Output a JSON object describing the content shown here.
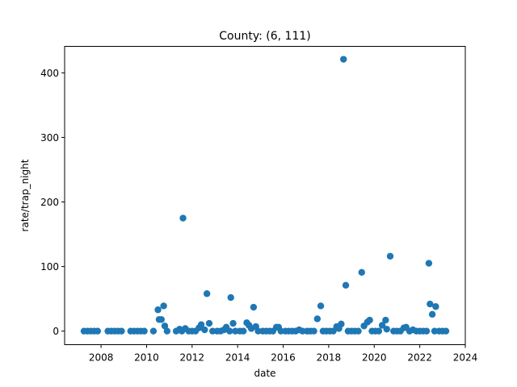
{
  "chart_data": {
    "type": "scatter",
    "title": "County: (6, 111)",
    "xlabel": "date",
    "ylabel": "rate/trap_night",
    "xlim": [
      2006.4,
      2024.0
    ],
    "ylim": [
      -21,
      441
    ],
    "xticks": [
      2008,
      2010,
      2012,
      2014,
      2016,
      2018,
      2020,
      2022,
      2024
    ],
    "yticks": [
      0,
      100,
      200,
      300,
      400
    ],
    "grid": false,
    "legend": "none",
    "marker_color": "#1f77b4",
    "points": [
      {
        "x": 2007.25,
        "y": 0
      },
      {
        "x": 2007.4,
        "y": 0
      },
      {
        "x": 2007.55,
        "y": 0
      },
      {
        "x": 2007.7,
        "y": 0
      },
      {
        "x": 2007.85,
        "y": 0
      },
      {
        "x": 2008.3,
        "y": 0
      },
      {
        "x": 2008.45,
        "y": 0
      },
      {
        "x": 2008.6,
        "y": 0
      },
      {
        "x": 2008.75,
        "y": 0
      },
      {
        "x": 2008.9,
        "y": 0
      },
      {
        "x": 2009.3,
        "y": 0
      },
      {
        "x": 2009.45,
        "y": 0
      },
      {
        "x": 2009.6,
        "y": 0
      },
      {
        "x": 2009.75,
        "y": 0
      },
      {
        "x": 2009.9,
        "y": 0
      },
      {
        "x": 2010.3,
        "y": 0
      },
      {
        "x": 2010.5,
        "y": 33
      },
      {
        "x": 2010.55,
        "y": 18
      },
      {
        "x": 2010.65,
        "y": 18
      },
      {
        "x": 2010.75,
        "y": 39
      },
      {
        "x": 2010.8,
        "y": 8
      },
      {
        "x": 2010.9,
        "y": 0
      },
      {
        "x": 2011.3,
        "y": 0
      },
      {
        "x": 2011.45,
        "y": 3
      },
      {
        "x": 2011.55,
        "y": 0
      },
      {
        "x": 2011.6,
        "y": 175
      },
      {
        "x": 2011.7,
        "y": 4
      },
      {
        "x": 2011.85,
        "y": 0
      },
      {
        "x": 2012.0,
        "y": 0
      },
      {
        "x": 2012.15,
        "y": 0
      },
      {
        "x": 2012.3,
        "y": 5
      },
      {
        "x": 2012.4,
        "y": 10
      },
      {
        "x": 2012.55,
        "y": 2
      },
      {
        "x": 2012.65,
        "y": 58
      },
      {
        "x": 2012.75,
        "y": 12
      },
      {
        "x": 2012.9,
        "y": 0
      },
      {
        "x": 2013.1,
        "y": 0
      },
      {
        "x": 2013.25,
        "y": 0
      },
      {
        "x": 2013.4,
        "y": 2
      },
      {
        "x": 2013.5,
        "y": 6
      },
      {
        "x": 2013.65,
        "y": 0
      },
      {
        "x": 2013.7,
        "y": 52
      },
      {
        "x": 2013.8,
        "y": 12
      },
      {
        "x": 2013.9,
        "y": 0
      },
      {
        "x": 2014.1,
        "y": 0
      },
      {
        "x": 2014.25,
        "y": 0
      },
      {
        "x": 2014.4,
        "y": 13
      },
      {
        "x": 2014.5,
        "y": 9
      },
      {
        "x": 2014.6,
        "y": 4
      },
      {
        "x": 2014.7,
        "y": 37
      },
      {
        "x": 2014.8,
        "y": 7
      },
      {
        "x": 2014.9,
        "y": 0
      },
      {
        "x": 2015.1,
        "y": 0
      },
      {
        "x": 2015.25,
        "y": 0
      },
      {
        "x": 2015.4,
        "y": 0
      },
      {
        "x": 2015.55,
        "y": 0
      },
      {
        "x": 2015.7,
        "y": 6
      },
      {
        "x": 2015.8,
        "y": 6
      },
      {
        "x": 2015.9,
        "y": 0
      },
      {
        "x": 2016.1,
        "y": 0
      },
      {
        "x": 2016.25,
        "y": 0
      },
      {
        "x": 2016.4,
        "y": 0
      },
      {
        "x": 2016.55,
        "y": 0
      },
      {
        "x": 2016.7,
        "y": 2
      },
      {
        "x": 2016.85,
        "y": 0
      },
      {
        "x": 2017.05,
        "y": 0
      },
      {
        "x": 2017.2,
        "y": 0
      },
      {
        "x": 2017.35,
        "y": 0
      },
      {
        "x": 2017.5,
        "y": 19
      },
      {
        "x": 2017.65,
        "y": 39
      },
      {
        "x": 2017.75,
        "y": 0
      },
      {
        "x": 2017.9,
        "y": 0
      },
      {
        "x": 2018.05,
        "y": 0
      },
      {
        "x": 2018.2,
        "y": 0
      },
      {
        "x": 2018.35,
        "y": 7
      },
      {
        "x": 2018.45,
        "y": 4
      },
      {
        "x": 2018.55,
        "y": 11
      },
      {
        "x": 2018.65,
        "y": 421
      },
      {
        "x": 2018.75,
        "y": 71
      },
      {
        "x": 2018.85,
        "y": 0
      },
      {
        "x": 2019.0,
        "y": 0
      },
      {
        "x": 2019.15,
        "y": 0
      },
      {
        "x": 2019.3,
        "y": 0
      },
      {
        "x": 2019.45,
        "y": 91
      },
      {
        "x": 2019.55,
        "y": 8
      },
      {
        "x": 2019.7,
        "y": 14
      },
      {
        "x": 2019.8,
        "y": 17
      },
      {
        "x": 2019.9,
        "y": 0
      },
      {
        "x": 2020.05,
        "y": 0
      },
      {
        "x": 2020.2,
        "y": 0
      },
      {
        "x": 2020.35,
        "y": 9
      },
      {
        "x": 2020.5,
        "y": 17
      },
      {
        "x": 2020.55,
        "y": 3
      },
      {
        "x": 2020.7,
        "y": 116
      },
      {
        "x": 2020.85,
        "y": 0
      },
      {
        "x": 2021.0,
        "y": 0
      },
      {
        "x": 2021.15,
        "y": 0
      },
      {
        "x": 2021.3,
        "y": 5
      },
      {
        "x": 2021.4,
        "y": 6
      },
      {
        "x": 2021.55,
        "y": 0
      },
      {
        "x": 2021.7,
        "y": 2
      },
      {
        "x": 2021.85,
        "y": 0
      },
      {
        "x": 2022.0,
        "y": 0
      },
      {
        "x": 2022.15,
        "y": 0
      },
      {
        "x": 2022.3,
        "y": 0
      },
      {
        "x": 2022.4,
        "y": 105
      },
      {
        "x": 2022.45,
        "y": 42
      },
      {
        "x": 2022.55,
        "y": 26
      },
      {
        "x": 2022.65,
        "y": 0
      },
      {
        "x": 2022.7,
        "y": 38
      },
      {
        "x": 2022.85,
        "y": 0
      },
      {
        "x": 2023.0,
        "y": 0
      },
      {
        "x": 2023.15,
        "y": 0
      }
    ]
  }
}
